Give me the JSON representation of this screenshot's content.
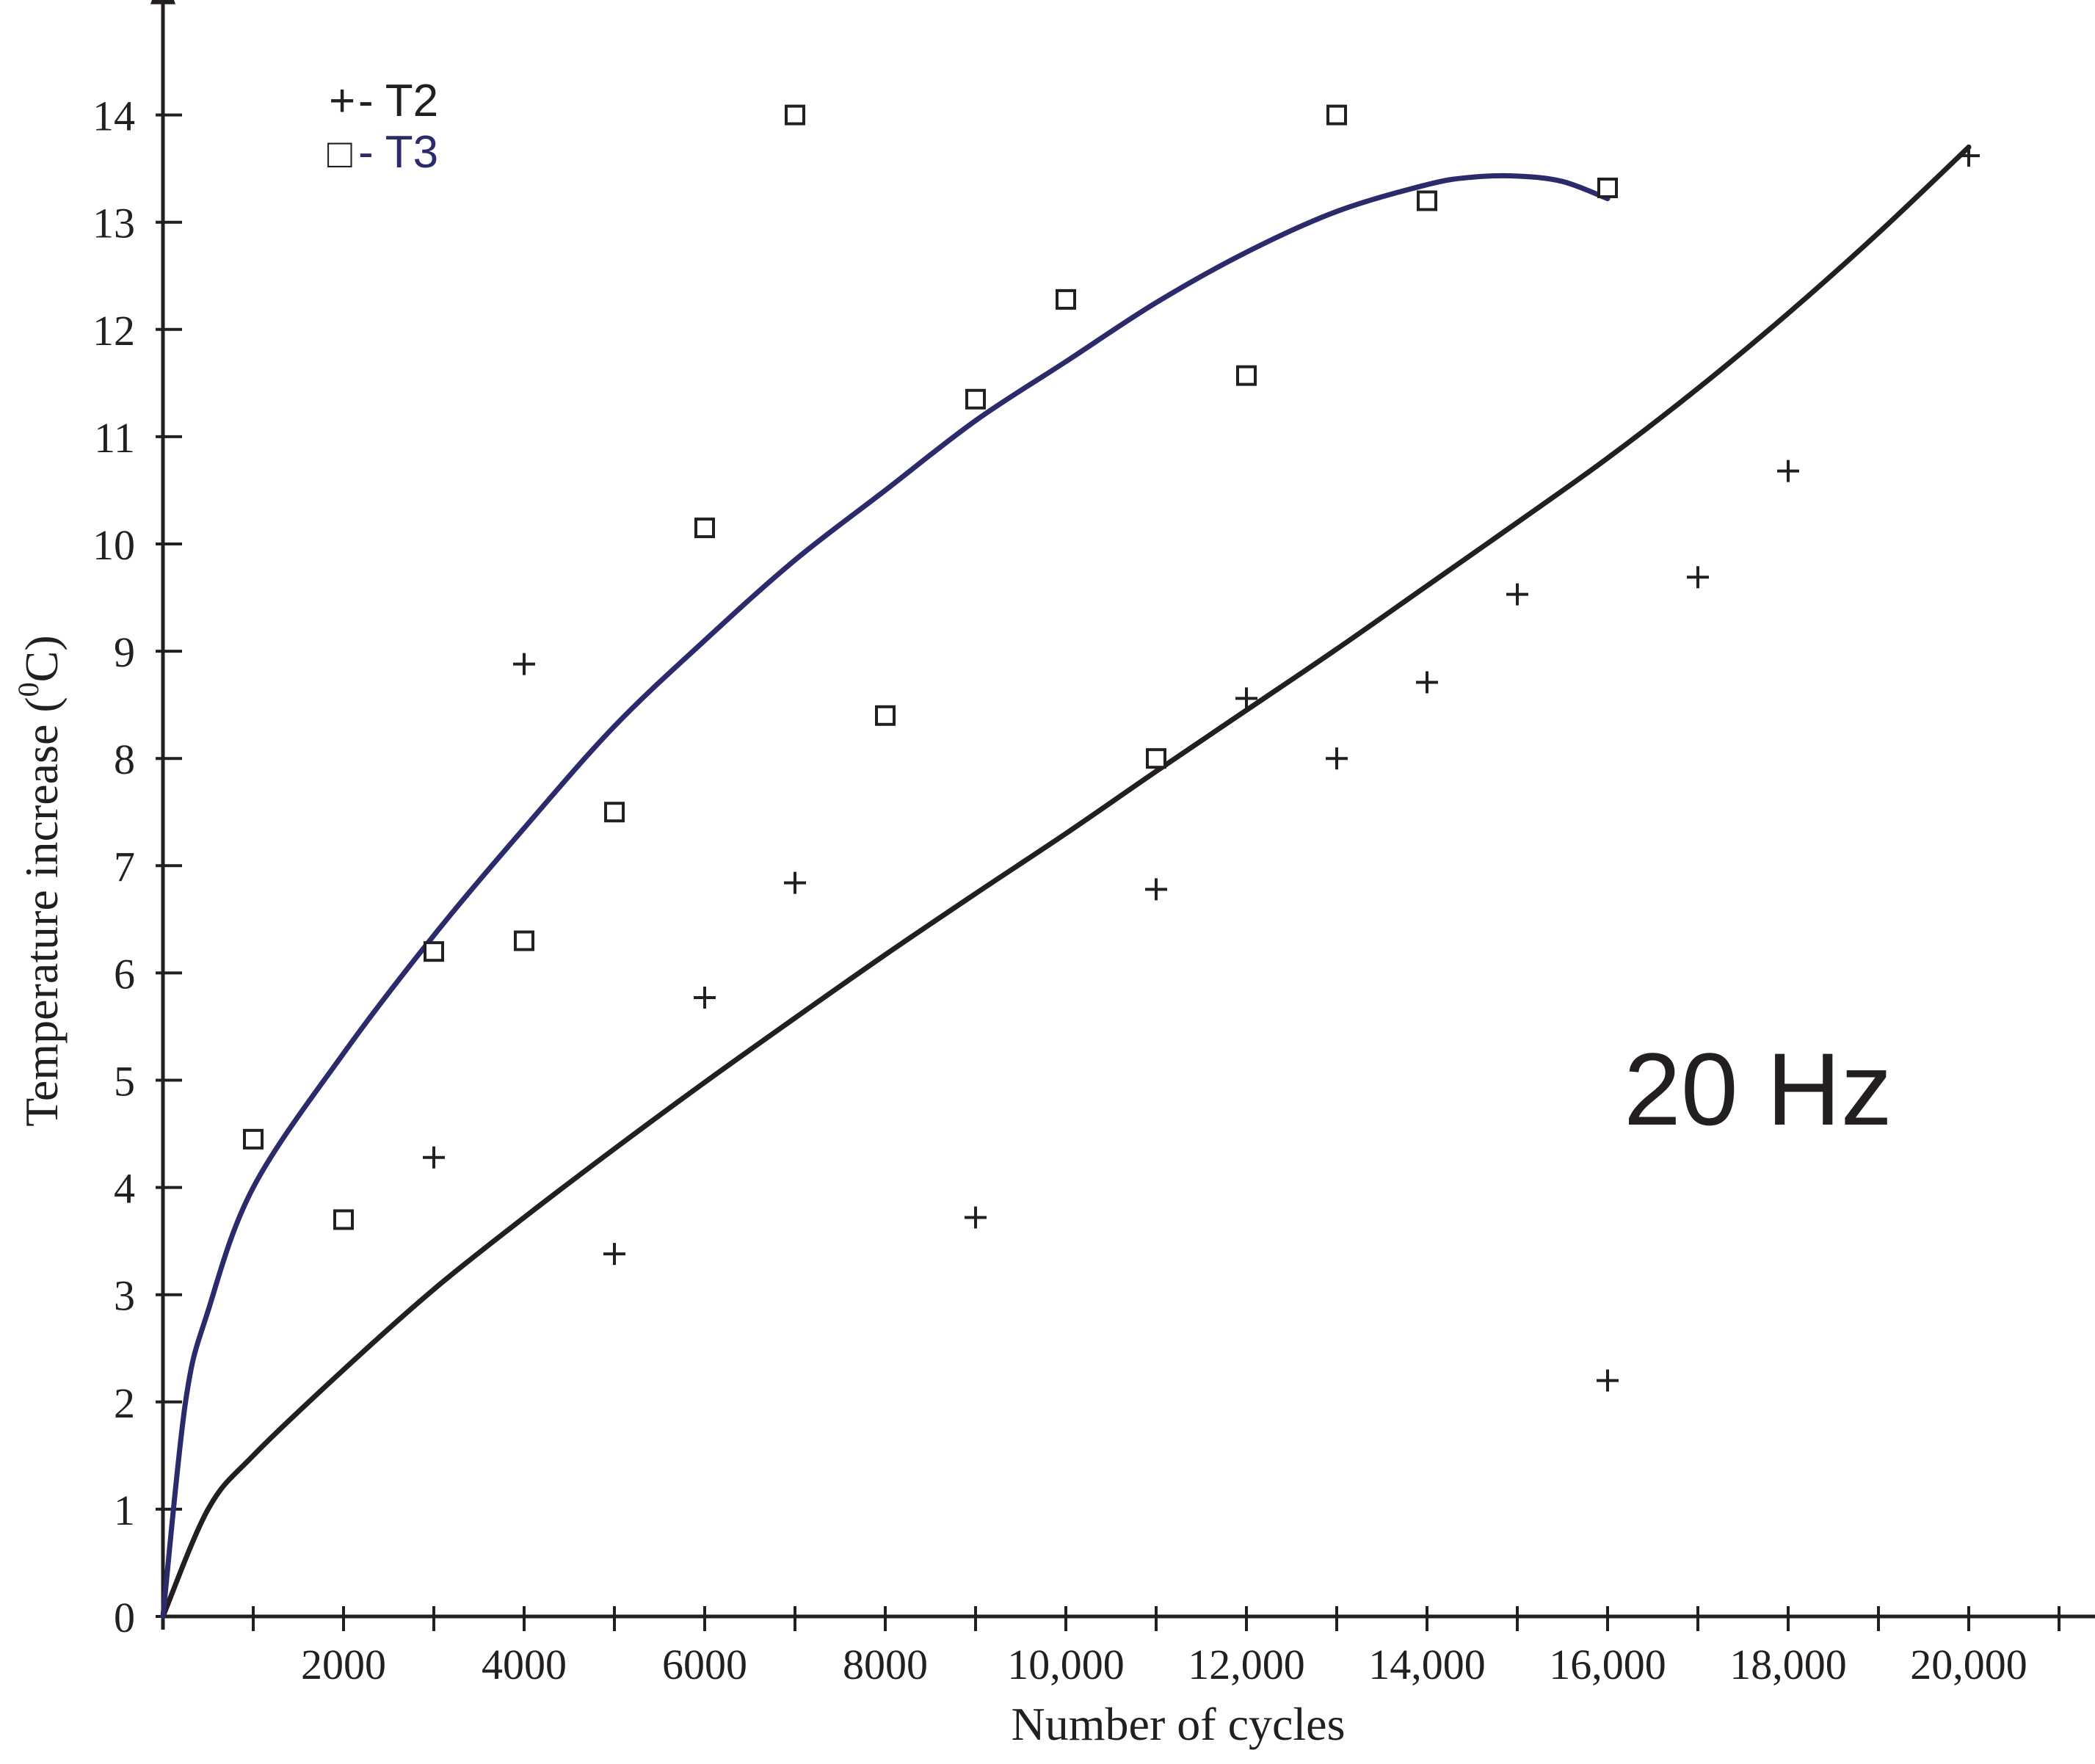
{
  "chart_data": {
    "type": "scatter",
    "xlabel": "Number of cycles",
    "ylabel": "Temperature increase (",
    "ylabel_sup": "0",
    "ylabel_unit": "C)",
    "xlim": [
      0,
      21000
    ],
    "ylim": [
      0,
      14.8
    ],
    "x_minor_ticks": [
      1000,
      2000,
      3000,
      4000,
      5000,
      6000,
      7000,
      8000,
      9000,
      10000,
      11000,
      12000,
      13000,
      14000,
      15000,
      16000,
      17000,
      18000,
      19000,
      20000,
      21000
    ],
    "x_ticks": [
      {
        "value": 2000,
        "label": "2000"
      },
      {
        "value": 4000,
        "label": "4000"
      },
      {
        "value": 6000,
        "label": "6000"
      },
      {
        "value": 8000,
        "label": "8000"
      },
      {
        "value": 10000,
        "label": "10,000"
      },
      {
        "value": 12000,
        "label": "12,000"
      },
      {
        "value": 14000,
        "label": "14,000"
      },
      {
        "value": 16000,
        "label": "16,000"
      },
      {
        "value": 18000,
        "label": "18,000"
      },
      {
        "value": 20000,
        "label": "20,000"
      }
    ],
    "y_ticks": [
      {
        "value": 0,
        "label": "0"
      },
      {
        "value": 1,
        "label": "1"
      },
      {
        "value": 2,
        "label": "2"
      },
      {
        "value": 3,
        "label": "3"
      },
      {
        "value": 4,
        "label": "4"
      },
      {
        "value": 5,
        "label": "5"
      },
      {
        "value": 6,
        "label": "6"
      },
      {
        "value": 7,
        "label": "7"
      },
      {
        "value": 8,
        "label": "8"
      },
      {
        "value": 9,
        "label": "9"
      },
      {
        "value": 10,
        "label": "10"
      },
      {
        "value": 11,
        "label": "11"
      },
      {
        "value": 12,
        "label": "12"
      },
      {
        "value": 13,
        "label": "13"
      },
      {
        "value": 14,
        "label": "14"
      }
    ],
    "annotation": "20 Hz",
    "series": [
      {
        "name": "T2",
        "legend_symbol": "+",
        "legend_label": "- T2",
        "marker": "plus",
        "color": "#231f20",
        "x": [
          3000,
          4000,
          5000,
          6000,
          7000,
          9000,
          11000,
          12000,
          13000,
          14000,
          15000,
          16000,
          17000,
          18000,
          20000
        ],
        "y": [
          4.28,
          8.88,
          3.38,
          5.77,
          6.84,
          3.72,
          6.78,
          8.56,
          8.0,
          8.71,
          9.53,
          2.2,
          9.69,
          10.68,
          13.62
        ],
        "fit_curve": {
          "x": [
            0,
            500,
            1000,
            2000,
            3000,
            4000,
            5000,
            6000,
            7000,
            8000,
            9000,
            10000,
            11000,
            12000,
            13000,
            14000,
            15000,
            16000,
            17000,
            18000,
            19000,
            20000
          ],
          "y": [
            0,
            1.0,
            1.5,
            2.3,
            3.05,
            3.72,
            4.36,
            4.98,
            5.58,
            6.17,
            6.74,
            7.3,
            7.88,
            8.45,
            9.02,
            9.61,
            10.2,
            10.8,
            11.45,
            12.15,
            12.9,
            13.7
          ]
        }
      },
      {
        "name": "T3",
        "legend_symbol": "□",
        "legend_label": "- T3",
        "marker": "square",
        "color": "#2b2a6b",
        "x": [
          1000,
          2000,
          3000,
          4000,
          5000,
          6000,
          7000,
          8000,
          9000,
          10000,
          11000,
          12000,
          13000,
          14000,
          16000
        ],
        "y": [
          4.45,
          3.7,
          6.2,
          6.3,
          7.5,
          10.15,
          14.0,
          8.4,
          11.35,
          12.28,
          8.0,
          11.57,
          14.0,
          13.2,
          13.32
        ],
        "fit_curve": {
          "x": [
            0,
            250,
            500,
            1000,
            2000,
            3000,
            4000,
            5000,
            6000,
            7000,
            8000,
            9000,
            10000,
            11000,
            12000,
            13000,
            14000,
            14500,
            15000,
            15500,
            16000
          ],
          "y": [
            0,
            2.0,
            2.85,
            4.0,
            5.25,
            6.35,
            7.35,
            8.3,
            9.1,
            9.85,
            10.5,
            11.15,
            11.7,
            12.25,
            12.72,
            13.1,
            13.35,
            13.42,
            13.43,
            13.38,
            13.22
          ]
        }
      }
    ]
  }
}
